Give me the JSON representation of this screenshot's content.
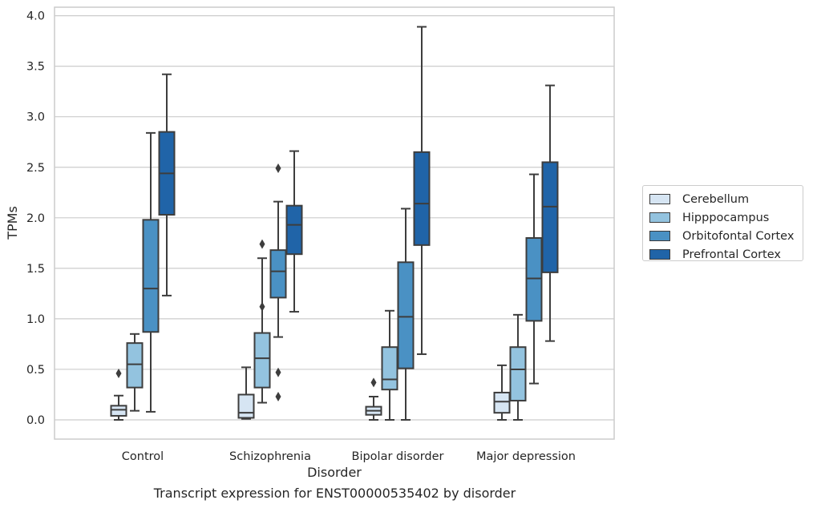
{
  "figure": {
    "caption": "Transcript expression for ENST00000535402 by disorder"
  },
  "chart_data": {
    "type": "box",
    "xlabel": "Disorder",
    "ylabel": "TPMs",
    "ylim": [
      -0.18,
      4.08
    ],
    "yticks": [
      "0.0",
      "0.5",
      "1.0",
      "1.5",
      "2.0",
      "2.5",
      "3.0",
      "3.5",
      "4.0"
    ],
    "grid": "horizontal",
    "legend_position": "right",
    "categories": [
      "Control",
      "Schizophrenia",
      "Bipolar disorder",
      "Major depression"
    ],
    "series": [
      {
        "name": "Cerebellum",
        "color": "#d6e5f3",
        "boxes": [
          {
            "min": 0.0,
            "q1": 0.04,
            "median": 0.1,
            "q3": 0.14,
            "max": 0.24,
            "outliers": [
              0.46
            ]
          },
          {
            "min": 0.01,
            "q1": 0.02,
            "median": 0.07,
            "q3": 0.25,
            "max": 0.52,
            "outliers": []
          },
          {
            "min": 0.0,
            "q1": 0.05,
            "median": 0.09,
            "q3": 0.13,
            "max": 0.23,
            "outliers": [
              0.37
            ]
          },
          {
            "min": 0.0,
            "q1": 0.07,
            "median": 0.18,
            "q3": 0.27,
            "max": 0.54,
            "outliers": []
          }
        ]
      },
      {
        "name": "Hipppocampus",
        "color": "#93c3df",
        "boxes": [
          {
            "min": 0.09,
            "q1": 0.32,
            "median": 0.55,
            "q3": 0.76,
            "max": 0.85,
            "outliers": []
          },
          {
            "min": 0.17,
            "q1": 0.32,
            "median": 0.61,
            "q3": 0.86,
            "max": 1.6,
            "outliers": [
              1.74,
              1.12
            ]
          },
          {
            "min": 0.0,
            "q1": 0.3,
            "median": 0.4,
            "q3": 0.72,
            "max": 1.08,
            "outliers": []
          },
          {
            "min": 0.0,
            "q1": 0.19,
            "median": 0.5,
            "q3": 0.72,
            "max": 1.04,
            "outliers": []
          }
        ]
      },
      {
        "name": "Orbitofontal Cortex",
        "color": "#4a91c4",
        "boxes": [
          {
            "min": 0.08,
            "q1": 0.87,
            "median": 1.3,
            "q3": 1.98,
            "max": 2.84,
            "outliers": []
          },
          {
            "min": 0.82,
            "q1": 1.21,
            "median": 1.47,
            "q3": 1.68,
            "max": 2.16,
            "outliers": [
              2.49,
              0.47,
              0.23
            ]
          },
          {
            "min": 0.0,
            "q1": 0.51,
            "median": 1.02,
            "q3": 1.56,
            "max": 2.09,
            "outliers": []
          },
          {
            "min": 0.36,
            "q1": 0.98,
            "median": 1.4,
            "q3": 1.8,
            "max": 2.43,
            "outliers": []
          }
        ]
      },
      {
        "name": "Prefrontal Cortex",
        "color": "#2064a8",
        "boxes": [
          {
            "min": 1.23,
            "q1": 2.03,
            "median": 2.44,
            "q3": 2.85,
            "max": 3.42,
            "outliers": []
          },
          {
            "min": 1.07,
            "q1": 1.64,
            "median": 1.93,
            "q3": 2.12,
            "max": 2.66,
            "outliers": []
          },
          {
            "min": 0.65,
            "q1": 1.73,
            "median": 2.14,
            "q3": 2.65,
            "max": 3.89,
            "outliers": []
          },
          {
            "min": 0.78,
            "q1": 1.46,
            "median": 2.11,
            "q3": 2.55,
            "max": 3.31,
            "outliers": []
          }
        ]
      }
    ]
  }
}
